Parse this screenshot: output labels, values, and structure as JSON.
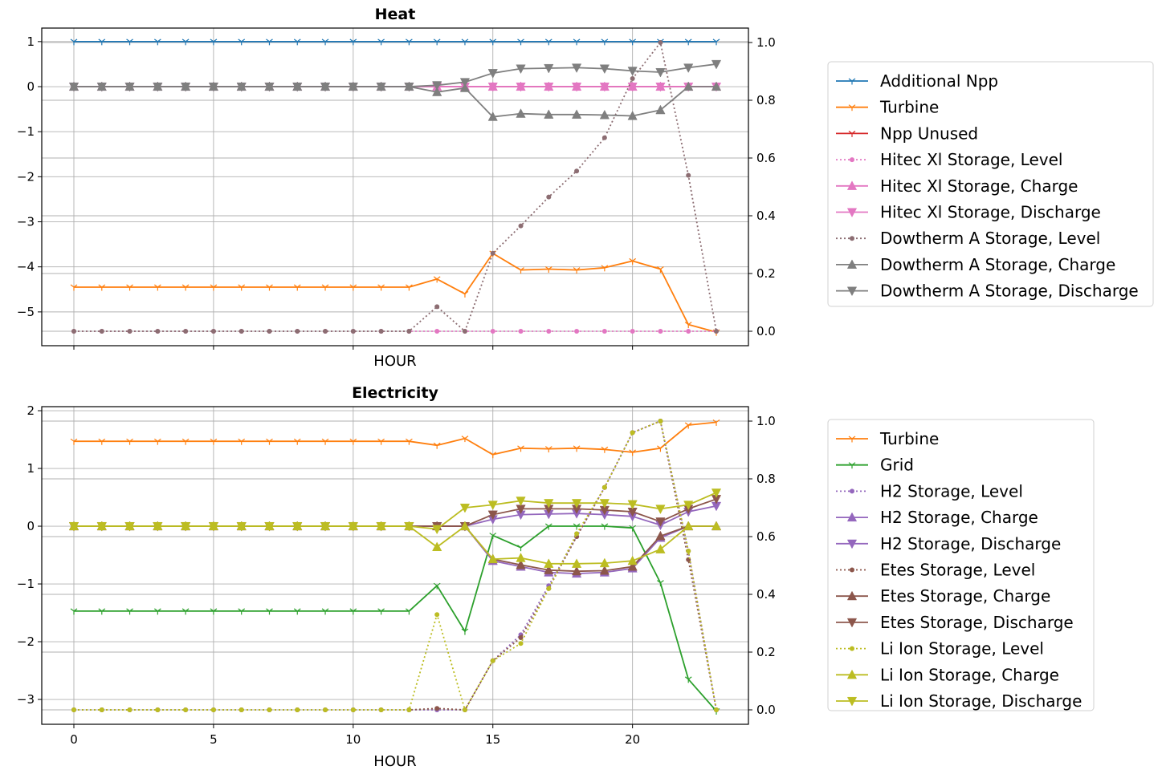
{
  "chart_data": [
    {
      "type": "line",
      "title": "Heat",
      "xlabel": "HOUR",
      "ylabel": "",
      "xlim": [
        -1.15,
        24.15
      ],
      "ylim_left": [
        -5.75,
        1.3
      ],
      "ylim_right": [
        -0.05,
        1.05
      ],
      "grid": true,
      "legend_position": "right",
      "xticks": [
        0,
        5,
        10,
        15,
        20
      ],
      "show_xtick_labels": false,
      "yticks_left": [
        1,
        0,
        -1,
        -2,
        -3,
        -4,
        -5
      ],
      "yticks_left_labels": [
        "1",
        "0",
        "−1",
        "−2",
        "−3",
        "−4",
        "−5"
      ],
      "yticks_right": [
        1.0,
        0.8,
        0.6,
        0.4,
        0.2,
        0.0
      ],
      "yticks_right_labels": [
        "1.0",
        "0.8",
        "0.6",
        "0.4",
        "0.2",
        "0.0"
      ],
      "x": [
        0,
        1,
        2,
        3,
        4,
        5,
        6,
        7,
        8,
        9,
        10,
        11,
        12,
        13,
        14,
        15,
        16,
        17,
        18,
        19,
        20,
        21,
        22,
        23
      ],
      "series": [
        {
          "name": "Additional Npp",
          "color": "#1f77b4",
          "axis": "left",
          "style": "solid",
          "marker": "tri_down",
          "values": [
            1,
            1,
            1,
            1,
            1,
            1,
            1,
            1,
            1,
            1,
            1,
            1,
            1,
            1,
            1,
            1,
            1,
            1,
            1,
            1,
            1,
            1,
            1,
            1
          ]
        },
        {
          "name": "Turbine",
          "color": "#ff7f0e",
          "axis": "left",
          "style": "solid",
          "marker": "tri_down",
          "values": [
            -4.45,
            -4.45,
            -4.45,
            -4.45,
            -4.45,
            -4.45,
            -4.45,
            -4.45,
            -4.45,
            -4.45,
            -4.45,
            -4.45,
            -4.45,
            -4.27,
            -4.6,
            -3.7,
            -4.07,
            -4.05,
            -4.07,
            -4.02,
            -3.87,
            -4.05,
            -5.28,
            -5.45
          ]
        },
        {
          "name": "Npp Unused",
          "color": "#d62728",
          "axis": "left",
          "style": "solid",
          "marker": "tri_down",
          "values": [
            0,
            0,
            0,
            0,
            0,
            0,
            0,
            0,
            0,
            0,
            0,
            0,
            0,
            0,
            0,
            0,
            0,
            0,
            0,
            0,
            0,
            0,
            0,
            0
          ]
        },
        {
          "name": "Hitec Xl Storage, Level",
          "color": "#e377c2",
          "axis": "right",
          "style": "dotted",
          "marker": "dot",
          "values": [
            0,
            0,
            0,
            0,
            0,
            0,
            0,
            0,
            0,
            0,
            0,
            0,
            0,
            0,
            0,
            0,
            0,
            0,
            0,
            0,
            0,
            0,
            0,
            0
          ]
        },
        {
          "name": "Hitec Xl Storage, Charge",
          "color": "#e377c2",
          "axis": "left",
          "style": "solid",
          "marker": "triangle_up",
          "values": [
            0,
            0,
            0,
            0,
            0,
            0,
            0,
            0,
            0,
            0,
            0,
            0,
            0,
            0,
            0,
            0,
            0,
            0,
            0,
            0,
            0,
            0,
            0,
            0
          ]
        },
        {
          "name": "Hitec Xl Storage, Discharge",
          "color": "#e377c2",
          "axis": "left",
          "style": "solid",
          "marker": "triangle_down",
          "values": [
            0,
            0,
            0,
            0,
            0,
            0,
            0,
            0,
            0,
            0,
            0,
            0,
            0,
            0,
            0,
            0,
            0,
            0,
            0,
            0,
            0,
            0,
            0,
            0
          ]
        },
        {
          "name": "Dowtherm A Storage, Level",
          "color": "#8c6d72",
          "axis": "right",
          "style": "dotted",
          "marker": "dot",
          "values": [
            0,
            0,
            0,
            0,
            0,
            0,
            0,
            0,
            0,
            0,
            0,
            0,
            0,
            0.085,
            0,
            0.27,
            0.365,
            0.465,
            0.555,
            0.67,
            0.875,
            1.0,
            0.54,
            0
          ]
        },
        {
          "name": "Dowtherm A Storage, Charge",
          "color": "#7f7f7f",
          "axis": "left",
          "style": "solid",
          "marker": "triangle_up",
          "values": [
            0,
            0,
            0,
            0,
            0,
            0,
            0,
            0,
            0,
            0,
            0,
            0,
            0,
            -0.12,
            -0.03,
            -0.67,
            -0.6,
            -0.62,
            -0.62,
            -0.63,
            -0.65,
            -0.52,
            0,
            0
          ]
        },
        {
          "name": "Dowtherm A Storage, Discharge",
          "color": "#7f7f7f",
          "axis": "left",
          "style": "solid",
          "marker": "triangle_down",
          "values": [
            0,
            0,
            0,
            0,
            0,
            0,
            0,
            0,
            0,
            0,
            0,
            0,
            0,
            0.03,
            0.1,
            0.3,
            0.4,
            0.41,
            0.42,
            0.4,
            0.35,
            0.32,
            0.42,
            0.5
          ]
        }
      ]
    },
    {
      "type": "line",
      "title": "Electricity",
      "xlabel": "HOUR",
      "ylabel": "",
      "xlim": [
        -1.15,
        24.15
      ],
      "ylim_left": [
        -3.43,
        2.07
      ],
      "ylim_right": [
        -0.05,
        1.05
      ],
      "grid": true,
      "legend_position": "right",
      "xticks": [
        0,
        5,
        10,
        15,
        20
      ],
      "show_xtick_labels": true,
      "xtick_labels": [
        "0",
        "5",
        "10",
        "15",
        "20"
      ],
      "yticks_left": [
        2,
        1,
        0,
        -1,
        -2,
        -3
      ],
      "yticks_left_labels": [
        "2",
        "1",
        "0",
        "−1",
        "−2",
        "−3"
      ],
      "yticks_right": [
        1.0,
        0.8,
        0.6,
        0.4,
        0.2,
        0.0
      ],
      "yticks_right_labels": [
        "1.0",
        "0.8",
        "0.6",
        "0.4",
        "0.2",
        "0.0"
      ],
      "x": [
        0,
        1,
        2,
        3,
        4,
        5,
        6,
        7,
        8,
        9,
        10,
        11,
        12,
        13,
        14,
        15,
        16,
        17,
        18,
        19,
        20,
        21,
        22,
        23
      ],
      "series": [
        {
          "name": "Turbine",
          "color": "#ff7f0e",
          "axis": "left",
          "style": "solid",
          "marker": "tri_down",
          "values": [
            1.47,
            1.47,
            1.47,
            1.47,
            1.47,
            1.47,
            1.47,
            1.47,
            1.47,
            1.47,
            1.47,
            1.47,
            1.47,
            1.4,
            1.52,
            1.24,
            1.35,
            1.34,
            1.35,
            1.33,
            1.28,
            1.35,
            1.75,
            1.8
          ]
        },
        {
          "name": "Grid",
          "color": "#2ca02c",
          "axis": "left",
          "style": "solid",
          "marker": "tri_down",
          "values": [
            -1.47,
            -1.47,
            -1.47,
            -1.47,
            -1.47,
            -1.47,
            -1.47,
            -1.47,
            -1.47,
            -1.47,
            -1.47,
            -1.47,
            -1.47,
            -1.03,
            -1.82,
            -0.16,
            -0.37,
            0,
            0,
            0,
            -0.03,
            -0.98,
            -2.65,
            -3.2
          ]
        },
        {
          "name": "H2 Storage, Level",
          "color": "#9467bd",
          "axis": "right",
          "style": "dotted",
          "marker": "dot",
          "values": [
            0,
            0,
            0,
            0,
            0,
            0,
            0,
            0,
            0,
            0,
            0,
            0,
            0,
            0,
            0,
            0.17,
            0.26,
            0.43,
            0.6,
            0.77,
            0.96,
            1.0,
            0.55,
            0
          ]
        },
        {
          "name": "H2 Storage, Charge",
          "color": "#9467bd",
          "axis": "left",
          "style": "solid",
          "marker": "triangle_up",
          "values": [
            0,
            0,
            0,
            0,
            0,
            0,
            0,
            0,
            0,
            0,
            0,
            0,
            0,
            0,
            0,
            -0.6,
            -0.7,
            -0.8,
            -0.82,
            -0.8,
            -0.73,
            -0.2,
            0,
            0
          ]
        },
        {
          "name": "H2 Storage, Discharge",
          "color": "#9467bd",
          "axis": "left",
          "style": "solid",
          "marker": "triangle_down",
          "values": [
            0,
            0,
            0,
            0,
            0,
            0,
            0,
            0,
            0,
            0,
            0,
            0,
            0,
            0,
            0,
            0.12,
            0.2,
            0.21,
            0.22,
            0.2,
            0.17,
            0.02,
            0.25,
            0.35
          ]
        },
        {
          "name": "Etes Storage, Level",
          "color": "#8c564b",
          "axis": "right",
          "style": "dotted",
          "marker": "dot",
          "values": [
            0,
            0,
            0,
            0,
            0,
            0,
            0,
            0,
            0,
            0,
            0,
            0,
            0,
            0.005,
            0,
            0.17,
            0.25,
            0.42,
            0.6,
            0.77,
            0.96,
            1.0,
            0.52,
            0
          ]
        },
        {
          "name": "Etes Storage, Charge",
          "color": "#8c564b",
          "axis": "left",
          "style": "solid",
          "marker": "triangle_up",
          "values": [
            0,
            0,
            0,
            0,
            0,
            0,
            0,
            0,
            0,
            0,
            0,
            0,
            0,
            0,
            0,
            -0.57,
            -0.67,
            -0.76,
            -0.78,
            -0.77,
            -0.7,
            -0.17,
            0,
            0
          ]
        },
        {
          "name": "Etes Storage, Discharge",
          "color": "#8c564b",
          "axis": "left",
          "style": "solid",
          "marker": "triangle_down",
          "values": [
            0,
            0,
            0,
            0,
            0,
            0,
            0,
            0,
            0,
            0,
            0,
            0,
            0,
            0,
            0,
            0.2,
            0.3,
            0.3,
            0.3,
            0.28,
            0.25,
            0.08,
            0.3,
            0.47
          ]
        },
        {
          "name": "Li Ion Storage, Level",
          "color": "#bcbd22",
          "axis": "right",
          "style": "dotted",
          "marker": "dot",
          "values": [
            0,
            0,
            0,
            0,
            0,
            0,
            0,
            0,
            0,
            0,
            0,
            0,
            0,
            0.33,
            0,
            0.17,
            0.23,
            0.42,
            0.61,
            0.77,
            0.96,
            1.0,
            0.55,
            0
          ]
        },
        {
          "name": "Li Ion Storage, Charge",
          "color": "#bcbd22",
          "axis": "left",
          "style": "solid",
          "marker": "triangle_up",
          "values": [
            0,
            0,
            0,
            0,
            0,
            0,
            0,
            0,
            0,
            0,
            0,
            0,
            0,
            -0.36,
            0,
            -0.57,
            -0.55,
            -0.65,
            -0.65,
            -0.64,
            -0.6,
            -0.4,
            0,
            0
          ]
        },
        {
          "name": "Li Ion Storage, Discharge",
          "color": "#bcbd22",
          "axis": "left",
          "style": "solid",
          "marker": "triangle_down",
          "values": [
            0,
            0,
            0,
            0,
            0,
            0,
            0,
            0,
            0,
            0,
            0,
            0,
            0,
            -0.05,
            0.32,
            0.37,
            0.44,
            0.4,
            0.4,
            0.4,
            0.38,
            0.3,
            0.37,
            0.58
          ]
        }
      ]
    }
  ]
}
